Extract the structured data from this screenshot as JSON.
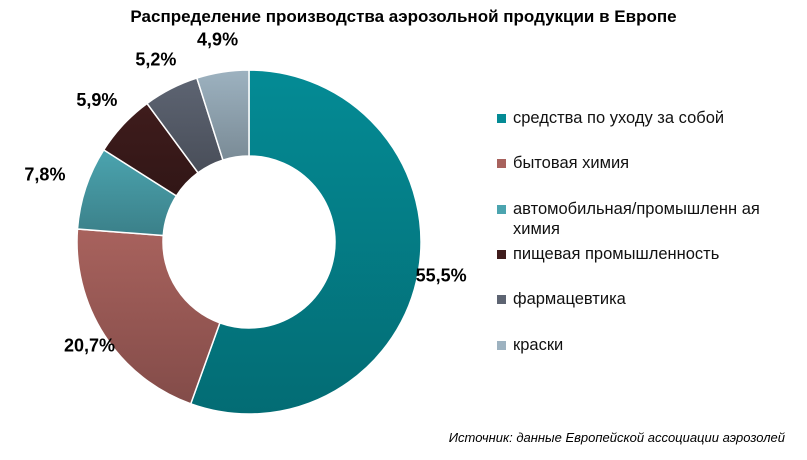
{
  "chart_data": {
    "type": "pie",
    "title": "Распределение производства аэрозольной продукции в Европе",
    "categories": [
      "средства по уходу за собой",
      "бытовая химия",
      "автомобильная/промышленная химия",
      "пищевая промышленность",
      "фармацевтика",
      "краски"
    ],
    "category_labels": [
      "средства по уходу за собой",
      "бытовая химия",
      "автомобильная/промышленн ая химия",
      "пищевая промышленность",
      "фармацевтика",
      "краски"
    ],
    "values": [
      55.5,
      20.7,
      7.8,
      5.9,
      5.2,
      4.9
    ],
    "value_labels": [
      "55,5%",
      "20,7%",
      "7,8%",
      "5,9%",
      "5,2%",
      "4,9%"
    ],
    "colors": [
      "#048b95",
      "#a8625d",
      "#4ba4af",
      "#3f1c1c",
      "#5d6472",
      "#9db2c0"
    ],
    "legend_position": "right",
    "donut": true
  },
  "source_note": "Источник: данные Европейской ассоциации аэрозолей"
}
